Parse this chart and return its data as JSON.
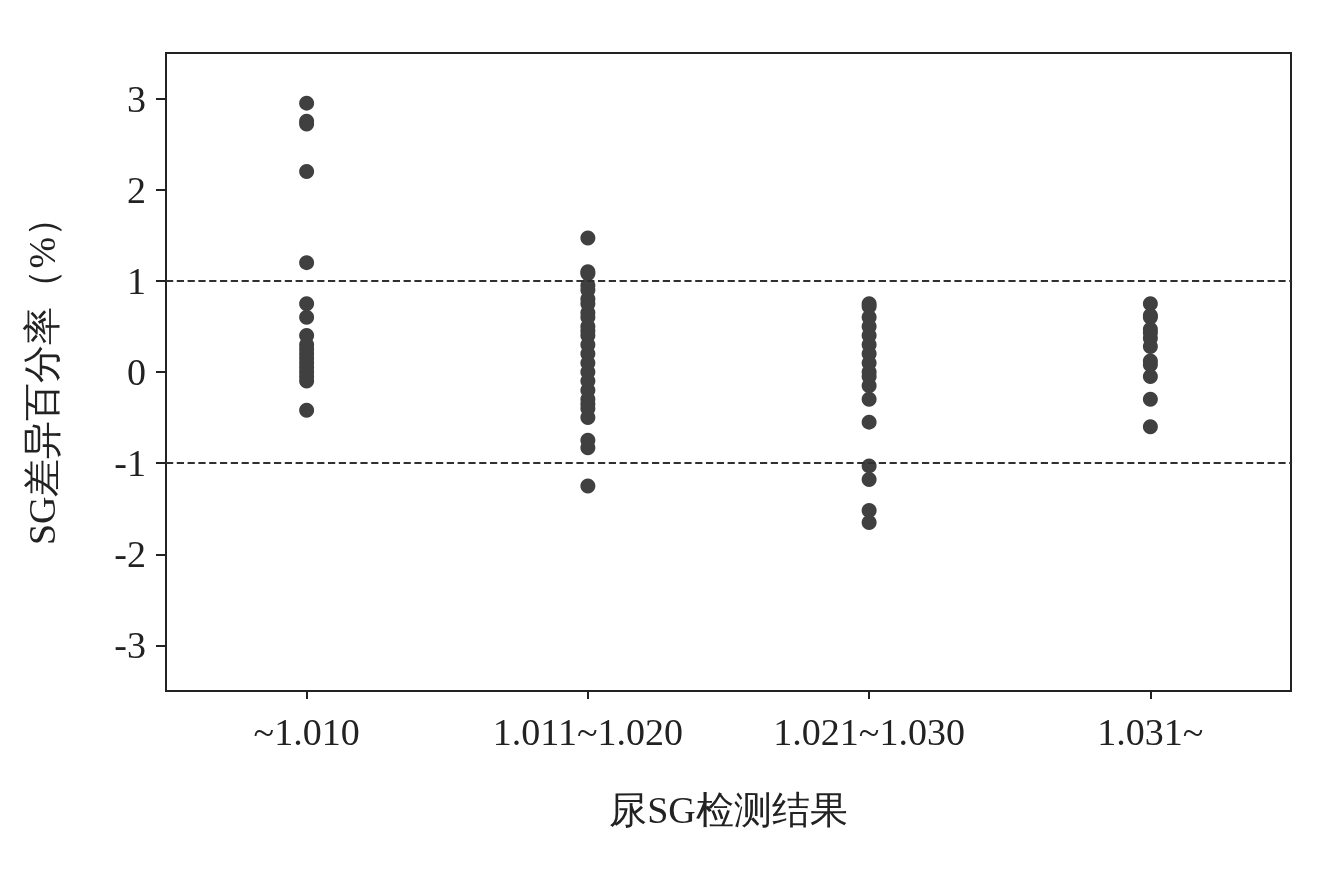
{
  "chart_data": {
    "type": "scatter",
    "xlabel": "尿SG检测结果",
    "ylabel": "SG差异百分率（%）",
    "categories": [
      "~1.010",
      "1.011~1.020",
      "1.021~1.030",
      "1.031~"
    ],
    "ylim": [
      -3.5,
      3.5
    ],
    "yticks": [
      -3,
      -2,
      -1,
      0,
      1,
      2,
      3
    ],
    "marker": "circle",
    "series": [
      {
        "color": "#404040",
        "x": [
          "~1.010",
          "~1.010",
          "~1.010",
          "~1.010",
          "~1.010",
          "~1.010",
          "~1.010",
          "~1.010",
          "~1.010",
          "~1.010",
          "~1.010",
          "~1.010",
          "~1.010",
          "~1.010",
          "~1.010",
          "~1.010",
          "~1.010",
          "~1.010",
          "1.011~1.020",
          "1.011~1.020",
          "1.011~1.020",
          "1.011~1.020",
          "1.011~1.020",
          "1.011~1.020",
          "1.011~1.020",
          "1.011~1.020",
          "1.011~1.020",
          "1.011~1.020",
          "1.011~1.020",
          "1.011~1.020",
          "1.011~1.020",
          "1.011~1.020",
          "1.011~1.020",
          "1.011~1.020",
          "1.011~1.020",
          "1.011~1.020",
          "1.011~1.020",
          "1.011~1.020",
          "1.011~1.020",
          "1.011~1.020",
          "1.011~1.020",
          "1.011~1.020",
          "1.011~1.020",
          "1.021~1.030",
          "1.021~1.030",
          "1.021~1.030",
          "1.021~1.030",
          "1.021~1.030",
          "1.021~1.030",
          "1.021~1.030",
          "1.021~1.030",
          "1.021~1.030",
          "1.021~1.030",
          "1.021~1.030",
          "1.021~1.030",
          "1.021~1.030",
          "1.021~1.030",
          "1.021~1.030",
          "1.021~1.030",
          "1.021~1.030",
          "1.031~",
          "1.031~",
          "1.031~",
          "1.031~",
          "1.031~",
          "1.031~",
          "1.031~",
          "1.031~",
          "1.031~",
          "1.031~",
          "1.031~",
          "1.031~"
        ],
        "values": [
          2.95,
          2.75,
          2.72,
          2.2,
          1.2,
          0.75,
          0.6,
          0.4,
          0.3,
          0.25,
          0.2,
          0.15,
          0.1,
          0.05,
          0,
          -0.05,
          -0.1,
          -0.42,
          1.47,
          1.1,
          1.08,
          0.95,
          0.9,
          0.8,
          0.75,
          0.65,
          0.6,
          0.5,
          0.4,
          0.3,
          0.2,
          0.1,
          0,
          -0.1,
          -0.2,
          -0.3,
          -0.35,
          -0.4,
          -0.5,
          -0.75,
          -0.83,
          -1.25,
          0.45,
          0.75,
          0.72,
          0.6,
          0.5,
          0.4,
          0.3,
          0.2,
          0.1,
          0,
          -0.05,
          -0.15,
          -0.3,
          -0.55,
          -1.03,
          -1.18,
          -1.52,
          -1.65,
          0.75,
          0.62,
          0.6,
          0.47,
          0.43,
          0.37,
          0.28,
          0.12,
          0.08,
          -0.05,
          -0.3,
          -0.6
        ]
      }
    ],
    "ref_lines": [
      {
        "axis": "y",
        "value": 1,
        "color": "#303030",
        "line_style": "dashed"
      },
      {
        "axis": "y",
        "value": -1,
        "color": "#303030",
        "line_style": "dashed"
      }
    ]
  }
}
